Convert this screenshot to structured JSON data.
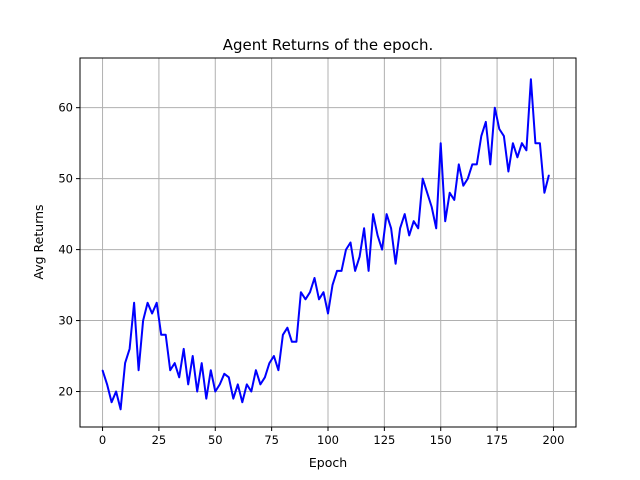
{
  "chart_data": {
    "type": "line",
    "title": "Agent Returns of the epoch.",
    "xlabel": "Epoch",
    "ylabel": "Avg Returns",
    "xlim": [
      -10,
      210
    ],
    "ylim": [
      15,
      67
    ],
    "xticks": [
      0,
      25,
      50,
      75,
      100,
      125,
      150,
      175,
      200
    ],
    "yticks": [
      20,
      30,
      40,
      50,
      60
    ],
    "grid": true,
    "legend": "none",
    "series": [
      {
        "color": "#0000ff",
        "x": [
          0,
          2,
          4,
          6,
          8,
          10,
          12,
          14,
          16,
          18,
          20,
          22,
          24,
          26,
          28,
          30,
          32,
          34,
          36,
          38,
          40,
          42,
          44,
          46,
          48,
          50,
          52,
          54,
          56,
          58,
          60,
          62,
          64,
          66,
          68,
          70,
          72,
          74,
          76,
          78,
          80,
          82,
          84,
          86,
          88,
          90,
          92,
          94,
          96,
          98,
          100,
          102,
          104,
          106,
          108,
          110,
          112,
          114,
          116,
          118,
          120,
          122,
          124,
          126,
          128,
          130,
          132,
          134,
          136,
          138,
          140,
          142,
          144,
          146,
          148,
          150,
          152,
          154,
          156,
          158,
          160,
          162,
          164,
          166,
          168,
          170,
          172,
          174,
          176,
          178,
          180,
          182,
          184,
          186,
          188,
          190,
          192,
          194,
          196,
          198
        ],
        "values": [
          23,
          21,
          18.5,
          20,
          17.5,
          24,
          26,
          32.5,
          23,
          30,
          32.5,
          31,
          32.5,
          28,
          28,
          23,
          24,
          22,
          26,
          21,
          25,
          20,
          24,
          19,
          23,
          20,
          21,
          22.5,
          22,
          19,
          21,
          18.5,
          21,
          20,
          23,
          21,
          22,
          24,
          25,
          23,
          28,
          29,
          27,
          27,
          34,
          33,
          34,
          36,
          33,
          34,
          31,
          35,
          37,
          37,
          40,
          41,
          37,
          39,
          43,
          37,
          45,
          42,
          40,
          45,
          43,
          38,
          43,
          45,
          42,
          44,
          43,
          50,
          48,
          46,
          43,
          55,
          44,
          48,
          47,
          52,
          49,
          50,
          52,
          52,
          56,
          58,
          52,
          60,
          57,
          56,
          51,
          55,
          53,
          55,
          54,
          64,
          55,
          55,
          48,
          50.5
        ]
      }
    ]
  }
}
